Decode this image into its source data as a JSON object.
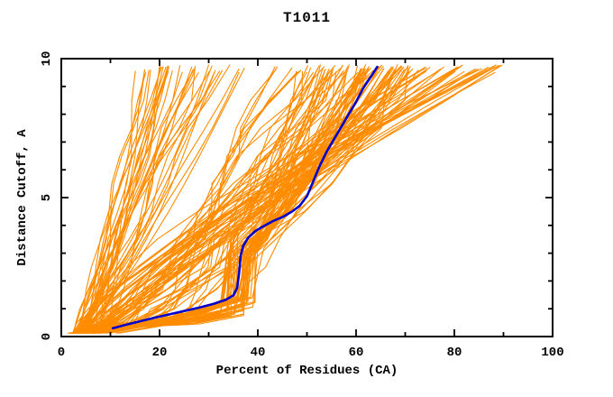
{
  "window": {
    "background": "#ffffff"
  },
  "chart_data": {
    "type": "line",
    "title": "T1011",
    "xlabel": "Percent of Residues (CA)",
    "ylabel": "Distance Cutoff, A",
    "xlim": [
      0,
      100
    ],
    "ylim": [
      0,
      10
    ],
    "x_ticks_major": [
      0,
      20,
      40,
      60,
      80,
      100
    ],
    "x_ticks_minor": [
      10,
      30,
      50,
      70,
      90
    ],
    "y_ticks_major": [
      0,
      5,
      10
    ],
    "y_ticks_minor": [
      1,
      2,
      3,
      4,
      6,
      7,
      8,
      9
    ],
    "grid": false,
    "legend": "none",
    "colors": {
      "ensemble": "#ff8c00",
      "highlight": "#0000cd",
      "axis": "#000000",
      "background": "#ffffff"
    },
    "series": [
      {
        "name": "highlighted-model",
        "color": "#0000cd",
        "points": [
          [
            10.5,
            0.3
          ],
          [
            13,
            0.42
          ],
          [
            16,
            0.55
          ],
          [
            19,
            0.68
          ],
          [
            22,
            0.8
          ],
          [
            25,
            0.92
          ],
          [
            28,
            1.04
          ],
          [
            31,
            1.18
          ],
          [
            33.5,
            1.32
          ],
          [
            35,
            1.48
          ],
          [
            35.8,
            1.75
          ],
          [
            36.2,
            2.3
          ],
          [
            36.5,
            2.9
          ],
          [
            37,
            3.25
          ],
          [
            38,
            3.55
          ],
          [
            39.5,
            3.8
          ],
          [
            41,
            3.95
          ],
          [
            43,
            4.15
          ],
          [
            45,
            4.3
          ],
          [
            47,
            4.5
          ],
          [
            48.5,
            4.7
          ],
          [
            50,
            5.05
          ],
          [
            51.2,
            5.55
          ],
          [
            52.5,
            6.1
          ],
          [
            54,
            6.65
          ],
          [
            55.5,
            7.1
          ],
          [
            57,
            7.55
          ],
          [
            58.5,
            8.0
          ],
          [
            60,
            8.45
          ],
          [
            61.5,
            8.95
          ],
          [
            63,
            9.35
          ],
          [
            64.3,
            9.7
          ]
        ]
      }
    ],
    "ensemble": {
      "name": "model-curves",
      "color": "#ff8c00",
      "count": 150,
      "seed": 7,
      "x_start_range": [
        2.5,
        11
      ],
      "y_top_range": [
        9.5,
        9.8
      ],
      "groups": [
        {
          "name": "steep-left",
          "weight": 0.2,
          "x_top_range": [
            16,
            38
          ]
        },
        {
          "name": "plateau-jump",
          "weight": 0.36,
          "x_top_range": [
            50,
            72
          ],
          "plateau_x_range": [
            29,
            40
          ],
          "plateau_y_range": [
            0.7,
            1.5
          ],
          "jump_height_range": [
            1.2,
            2.4
          ]
        },
        {
          "name": "mid",
          "weight": 0.3,
          "x_top_range": [
            42,
            75
          ]
        },
        {
          "name": "wide-right",
          "weight": 0.14,
          "x_top_range": [
            74,
            90
          ]
        }
      ]
    }
  }
}
